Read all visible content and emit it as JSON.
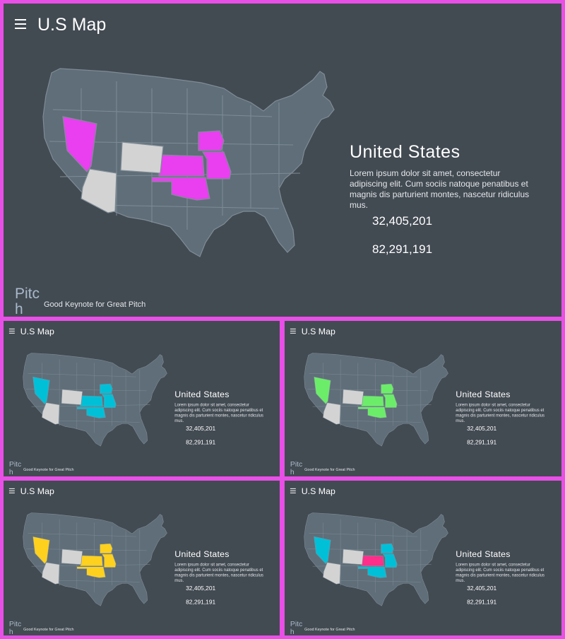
{
  "slide": {
    "title": "U.S Map",
    "country": "United  States",
    "description": "Lorem ipsum dolor sit amet, consectetur adipiscing elit. Cum sociis natoque penatibus et magnis dis parturient montes, nascetur ridiculus mus.",
    "stat1": "32,405,201",
    "stat2": "82,291,191",
    "brand": "Pitch",
    "tagline": "Good Keynote for Great Pitch"
  },
  "variants": [
    {
      "accent": "#e93ff0",
      "accent2": "#e93ff0"
    },
    {
      "accent": "#00c0d8",
      "accent2": "#00c0d8"
    },
    {
      "accent": "#6ced6a",
      "accent2": "#6ced6a"
    },
    {
      "accent": "#ffd11f",
      "accent2": "#ffd11f"
    },
    {
      "accent": "#00c0d8",
      "accent2": "#ff2e8b"
    }
  ],
  "icons": {
    "menu": "hamburger-menu-icon"
  },
  "colors": {
    "background": "#424a52",
    "frame": "#e84fe6",
    "map_base": "#5f6e79",
    "map_grey": "#d3d3d3"
  }
}
